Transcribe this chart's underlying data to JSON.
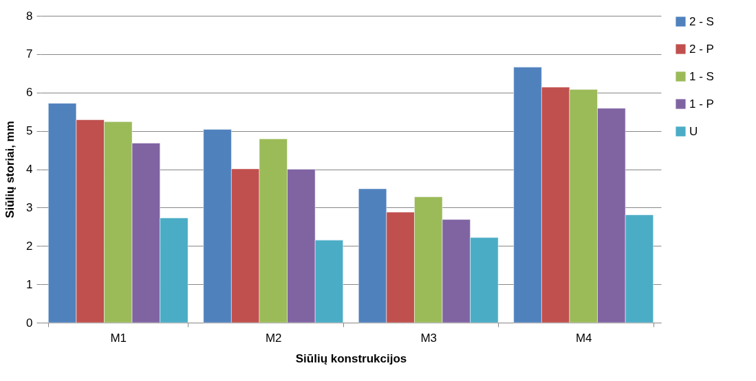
{
  "chart_data": {
    "type": "bar",
    "xlabel": "Siūlių konstrukcijos",
    "ylabel": "Siūlių storiai, mm",
    "categories": [
      "M1",
      "M2",
      "M3",
      "M4"
    ],
    "series": [
      {
        "name": "2 - S",
        "color": "#4f81bd",
        "values": [
          5.72,
          5.04,
          3.49,
          6.66
        ]
      },
      {
        "name": "2 - P",
        "color": "#c0504d",
        "values": [
          5.29,
          4.01,
          2.88,
          6.14
        ]
      },
      {
        "name": "1 - S",
        "color": "#9bbb59",
        "values": [
          5.24,
          4.79,
          3.28,
          6.08
        ]
      },
      {
        "name": "1 - P",
        "color": "#8064a2",
        "values": [
          4.68,
          4.0,
          2.69,
          5.59
        ]
      },
      {
        "name": "U",
        "color": "#4bacc6",
        "values": [
          2.73,
          2.15,
          2.22,
          2.81
        ]
      }
    ],
    "ylim": [
      0,
      8
    ],
    "yticks": [
      0,
      1,
      2,
      3,
      4,
      5,
      6,
      7,
      8
    ],
    "grid": "y",
    "legend": "right"
  }
}
